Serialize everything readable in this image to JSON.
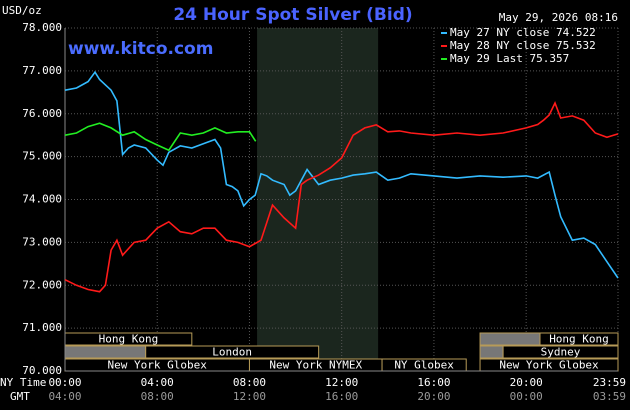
{
  "chart_data": {
    "type": "line",
    "title": "24 Hour Spot Silver (Bid)",
    "watermark": "www.kitco.com",
    "timestamp": "May 29, 2026 08:16",
    "y_label": "USD/oz",
    "x_label": "NY Time",
    "x2_label": "GMT",
    "xlim": [
      0,
      23.983
    ],
    "ylim": [
      70,
      78
    ],
    "xticks": [
      {
        "value": 0,
        "label": "00:00"
      },
      {
        "value": 4,
        "label": "04:00"
      },
      {
        "value": 8,
        "label": "08:00"
      },
      {
        "value": 12,
        "label": "12:00"
      },
      {
        "value": 16,
        "label": "16:00"
      },
      {
        "value": 20,
        "label": "20:00"
      },
      {
        "value": 23.983,
        "label": "23:59"
      }
    ],
    "x2ticks": [
      {
        "value": 0,
        "label": "04:00"
      },
      {
        "value": 4,
        "label": "08:00"
      },
      {
        "value": 8,
        "label": "12:00"
      },
      {
        "value": 12,
        "label": "16:00"
      },
      {
        "value": 16,
        "label": "20:00"
      },
      {
        "value": 20,
        "label": "00:00"
      },
      {
        "value": 23.983,
        "label": "03:59"
      }
    ],
    "yticks": [
      {
        "value": 70,
        "label": "70.000"
      },
      {
        "value": 71,
        "label": "71.000"
      },
      {
        "value": 72,
        "label": "72.000"
      },
      {
        "value": 73,
        "label": "73.000"
      },
      {
        "value": 74,
        "label": "74.000"
      },
      {
        "value": 75,
        "label": "75.000"
      },
      {
        "value": 76,
        "label": "76.000"
      },
      {
        "value": 77,
        "label": "77.000"
      },
      {
        "value": 78,
        "label": "78.000"
      }
    ],
    "grid": true,
    "highlight": [
      8.33,
      13.58
    ],
    "series": [
      {
        "name": "May 27 NY close 74.522",
        "color": "#33bbff",
        "x": [
          0,
          0.5,
          1,
          1.3,
          1.5,
          2,
          2.25,
          2.5,
          2.75,
          3,
          3.5,
          4,
          4.25,
          4.5,
          5,
          5.5,
          6,
          6.5,
          6.75,
          7,
          7.25,
          7.5,
          7.75,
          8,
          8.25,
          8.5,
          8.75,
          9,
          9.5,
          9.75,
          10,
          10.5,
          11,
          11.5,
          12,
          12.5,
          13,
          13.5,
          14,
          14.5,
          15,
          16,
          17,
          18,
          19,
          20,
          20.5,
          21,
          21.25,
          21.5,
          22,
          22.5,
          23,
          23.5,
          23.983
        ],
        "values": [
          76.55,
          76.6,
          76.75,
          76.97,
          76.8,
          76.55,
          76.3,
          75.05,
          75.2,
          75.27,
          75.2,
          74.92,
          74.8,
          75.1,
          75.25,
          75.2,
          75.3,
          75.4,
          75.2,
          74.35,
          74.3,
          74.2,
          73.85,
          74.0,
          74.1,
          74.6,
          74.55,
          74.45,
          74.35,
          74.1,
          74.2,
          74.7,
          74.35,
          74.45,
          74.5,
          74.57,
          74.6,
          74.64,
          74.45,
          74.5,
          74.6,
          74.55,
          74.5,
          74.55,
          74.52,
          74.55,
          74.5,
          74.64,
          74.1,
          73.6,
          73.05,
          73.1,
          72.95,
          72.55,
          72.17
        ]
      },
      {
        "name": "May 28 NY close 75.532",
        "color": "#ff1a1a",
        "x": [
          0,
          0.5,
          1,
          1.5,
          1.75,
          2,
          2.25,
          2.5,
          3,
          3.5,
          4,
          4.5,
          5,
          5.5,
          6,
          6.5,
          7,
          7.5,
          8,
          8.5,
          9,
          9.5,
          10,
          10.25,
          10.5,
          11,
          11.5,
          12,
          12.5,
          13,
          13.5,
          14,
          14.5,
          15,
          16,
          17,
          18,
          19,
          20,
          20.5,
          20.75,
          21,
          21.25,
          21.5,
          22,
          22.5,
          23,
          23.5,
          23.983
        ],
        "values": [
          72.13,
          72.0,
          71.9,
          71.85,
          72.0,
          72.82,
          73.05,
          72.7,
          73.0,
          73.05,
          73.33,
          73.48,
          73.25,
          73.2,
          73.33,
          73.33,
          73.05,
          73.0,
          72.9,
          73.05,
          73.87,
          73.57,
          73.33,
          74.35,
          74.45,
          74.57,
          74.74,
          74.97,
          75.5,
          75.67,
          75.74,
          75.58,
          75.6,
          75.55,
          75.5,
          75.55,
          75.5,
          75.55,
          75.67,
          75.75,
          75.85,
          75.97,
          76.25,
          75.9,
          75.95,
          75.85,
          75.55,
          75.45,
          75.53
        ]
      },
      {
        "name": "May 29 Last 75.357",
        "color": "#22ee22",
        "x": [
          0,
          0.5,
          1,
          1.5,
          2,
          2.5,
          3,
          3.5,
          4,
          4.5,
          5,
          5.5,
          6,
          6.5,
          7,
          7.5,
          8,
          8.27
        ],
        "values": [
          75.5,
          75.55,
          75.7,
          75.78,
          75.67,
          75.5,
          75.58,
          75.4,
          75.27,
          75.15,
          75.55,
          75.5,
          75.55,
          75.67,
          75.55,
          75.58,
          75.58,
          75.357
        ]
      }
    ],
    "sessions": [
      [
        {
          "label": "Hong Kong",
          "start": 0,
          "end": 5.5
        },
        {
          "label": null,
          "start": 18,
          "end": 20.6
        },
        {
          "label": "Hong Kong",
          "start": 20.6,
          "end": 23.983
        }
      ],
      [
        {
          "label": null,
          "start": 0,
          "end": 3.5
        },
        {
          "label": "London",
          "start": 3.5,
          "end": 11
        },
        {
          "label": null,
          "start": 18,
          "end": 19
        },
        {
          "label": "Sydney",
          "start": 19,
          "end": 23.983
        }
      ],
      [
        {
          "label": "New York Globex",
          "start": 0,
          "end": 8
        },
        {
          "label": "New York NYMEX",
          "start": 8,
          "end": 13.75
        },
        {
          "label": "NY Globex",
          "start": 13.75,
          "end": 17.4
        },
        {
          "label": "New York Globex",
          "start": 18,
          "end": 23.983
        }
      ]
    ]
  }
}
